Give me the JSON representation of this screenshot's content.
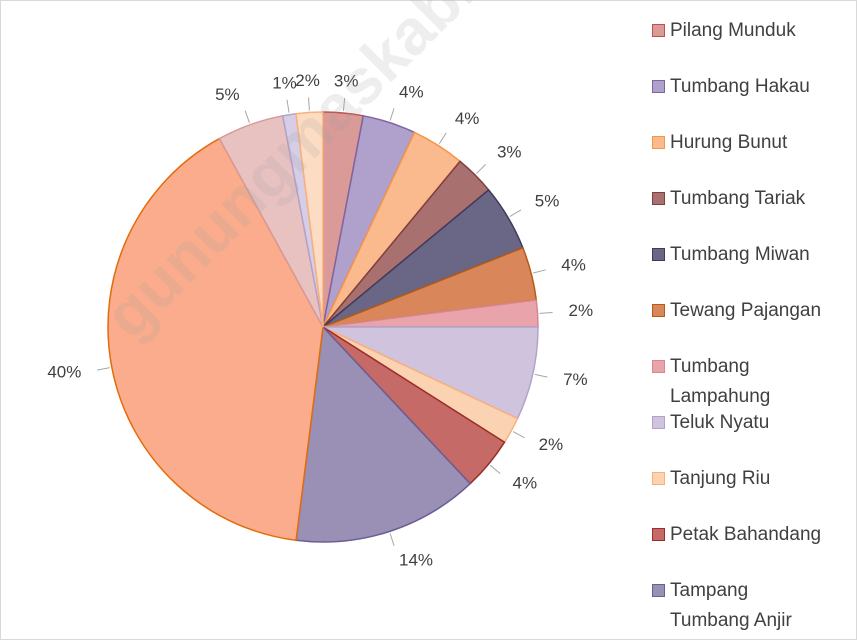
{
  "chart_data": {
    "type": "pie",
    "categories": [
      "Pilang Munduk",
      "Tumbang Hakau",
      "Hurung Bunut",
      "Tumbang Tariak",
      "Tumbang Miwan",
      "Tewang Pajangan",
      "Tumbang Lampahung",
      "Teluk Nyatu",
      "Tanjung Riu",
      "Petak Bahandang",
      "Tampang Tumbang Anjir",
      null,
      null,
      null,
      null
    ],
    "values": [
      3,
      4,
      4,
      3,
      5,
      4,
      2,
      7,
      2,
      4,
      14,
      40,
      5,
      1,
      2
    ],
    "value_labels": [
      "3%",
      "4%",
      "4%",
      "3%",
      "5%",
      "4%",
      "2%",
      "7%",
      "2%",
      "4%",
      "14%",
      "40%",
      "5%",
      "1%",
      "2%"
    ],
    "colors": [
      "#d99a98",
      "#b0a0cc",
      "#fbb98e",
      "#a8706e",
      "#6a6686",
      "#d9865a",
      "#e8a4aa",
      "#cfc3de",
      "#fcd3b2",
      "#c56a66",
      "#9a8fb4",
      "#fbac8c",
      "#e8c1c1",
      "#d6cde6",
      "#fddcc4"
    ],
    "borders": [
      "#c0504d",
      "#8064a2",
      "#f79646",
      "#7f3f3d",
      "#403a5e",
      "#b35c16",
      "#d9868c",
      "#b3a2c7",
      "#fab07a",
      "#9b2e2a",
      "#6a5f94",
      "#e36c0a",
      "#d99a9a",
      "#b3a2c7",
      "#fab07a"
    ],
    "legend": "right",
    "watermark": "gunungmaskab.bps.go.id"
  }
}
